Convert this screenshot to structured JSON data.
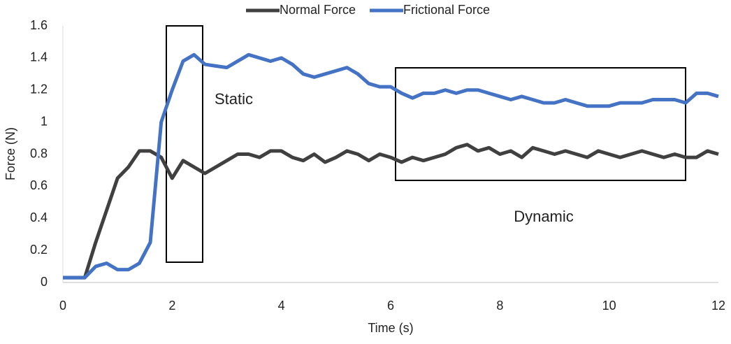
{
  "chart_data": {
    "type": "line",
    "xlabel": "Time (s)",
    "ylabel": "Force (N)",
    "annotations": [
      "Static",
      "Dynamic"
    ],
    "x": [
      0,
      0.2,
      0.4,
      0.6,
      0.8,
      1.0,
      1.2,
      1.4,
      1.6,
      1.8,
      2.0,
      2.2,
      2.4,
      2.6,
      2.8,
      3.0,
      3.2,
      3.4,
      3.6,
      3.8,
      4.0,
      4.2,
      4.4,
      4.6,
      4.8,
      5.0,
      5.2,
      5.4,
      5.6,
      5.8,
      6.0,
      6.2,
      6.4,
      6.6,
      6.8,
      7.0,
      7.2,
      7.4,
      7.6,
      7.8,
      8.0,
      8.2,
      8.4,
      8.6,
      8.8,
      9.0,
      9.2,
      9.4,
      9.6,
      9.8,
      10.0,
      10.2,
      10.4,
      10.6,
      10.8,
      11.0,
      11.2,
      11.4,
      11.6,
      11.8,
      12.0
    ],
    "series": [
      {
        "name": "Normal Force",
        "color": "#404040",
        "values": [
          0.03,
          0.03,
          0.03,
          0.25,
          0.45,
          0.65,
          0.72,
          0.82,
          0.82,
          0.78,
          0.65,
          0.76,
          0.72,
          0.68,
          0.72,
          0.76,
          0.8,
          0.8,
          0.78,
          0.82,
          0.82,
          0.78,
          0.76,
          0.8,
          0.75,
          0.78,
          0.82,
          0.8,
          0.76,
          0.8,
          0.78,
          0.75,
          0.78,
          0.76,
          0.78,
          0.8,
          0.84,
          0.86,
          0.82,
          0.84,
          0.8,
          0.82,
          0.78,
          0.84,
          0.82,
          0.8,
          0.82,
          0.8,
          0.78,
          0.82,
          0.8,
          0.78,
          0.8,
          0.82,
          0.8,
          0.78,
          0.8,
          0.78,
          0.78,
          0.82,
          0.8
        ]
      },
      {
        "name": "Frictional Force",
        "color": "#4472c4",
        "values": [
          0.03,
          0.03,
          0.03,
          0.1,
          0.12,
          0.08,
          0.08,
          0.12,
          0.25,
          1.0,
          1.2,
          1.38,
          1.42,
          1.36,
          1.35,
          1.34,
          1.38,
          1.42,
          1.4,
          1.38,
          1.4,
          1.36,
          1.3,
          1.28,
          1.3,
          1.32,
          1.34,
          1.3,
          1.24,
          1.22,
          1.22,
          1.18,
          1.15,
          1.18,
          1.18,
          1.2,
          1.18,
          1.2,
          1.2,
          1.18,
          1.16,
          1.14,
          1.16,
          1.14,
          1.12,
          1.12,
          1.14,
          1.12,
          1.1,
          1.1,
          1.1,
          1.12,
          1.12,
          1.12,
          1.14,
          1.14,
          1.14,
          1.12,
          1.18,
          1.18,
          1.16
        ]
      }
    ],
    "xlim": [
      0,
      12
    ],
    "xticks": [
      0,
      2,
      4,
      6,
      8,
      10,
      12
    ],
    "ylim": [
      0,
      1.6
    ],
    "yticks": [
      0,
      0.2,
      0.4,
      0.6,
      0.8,
      1,
      1.2,
      1.4,
      1.6
    ],
    "grid": false,
    "legend": "top"
  }
}
